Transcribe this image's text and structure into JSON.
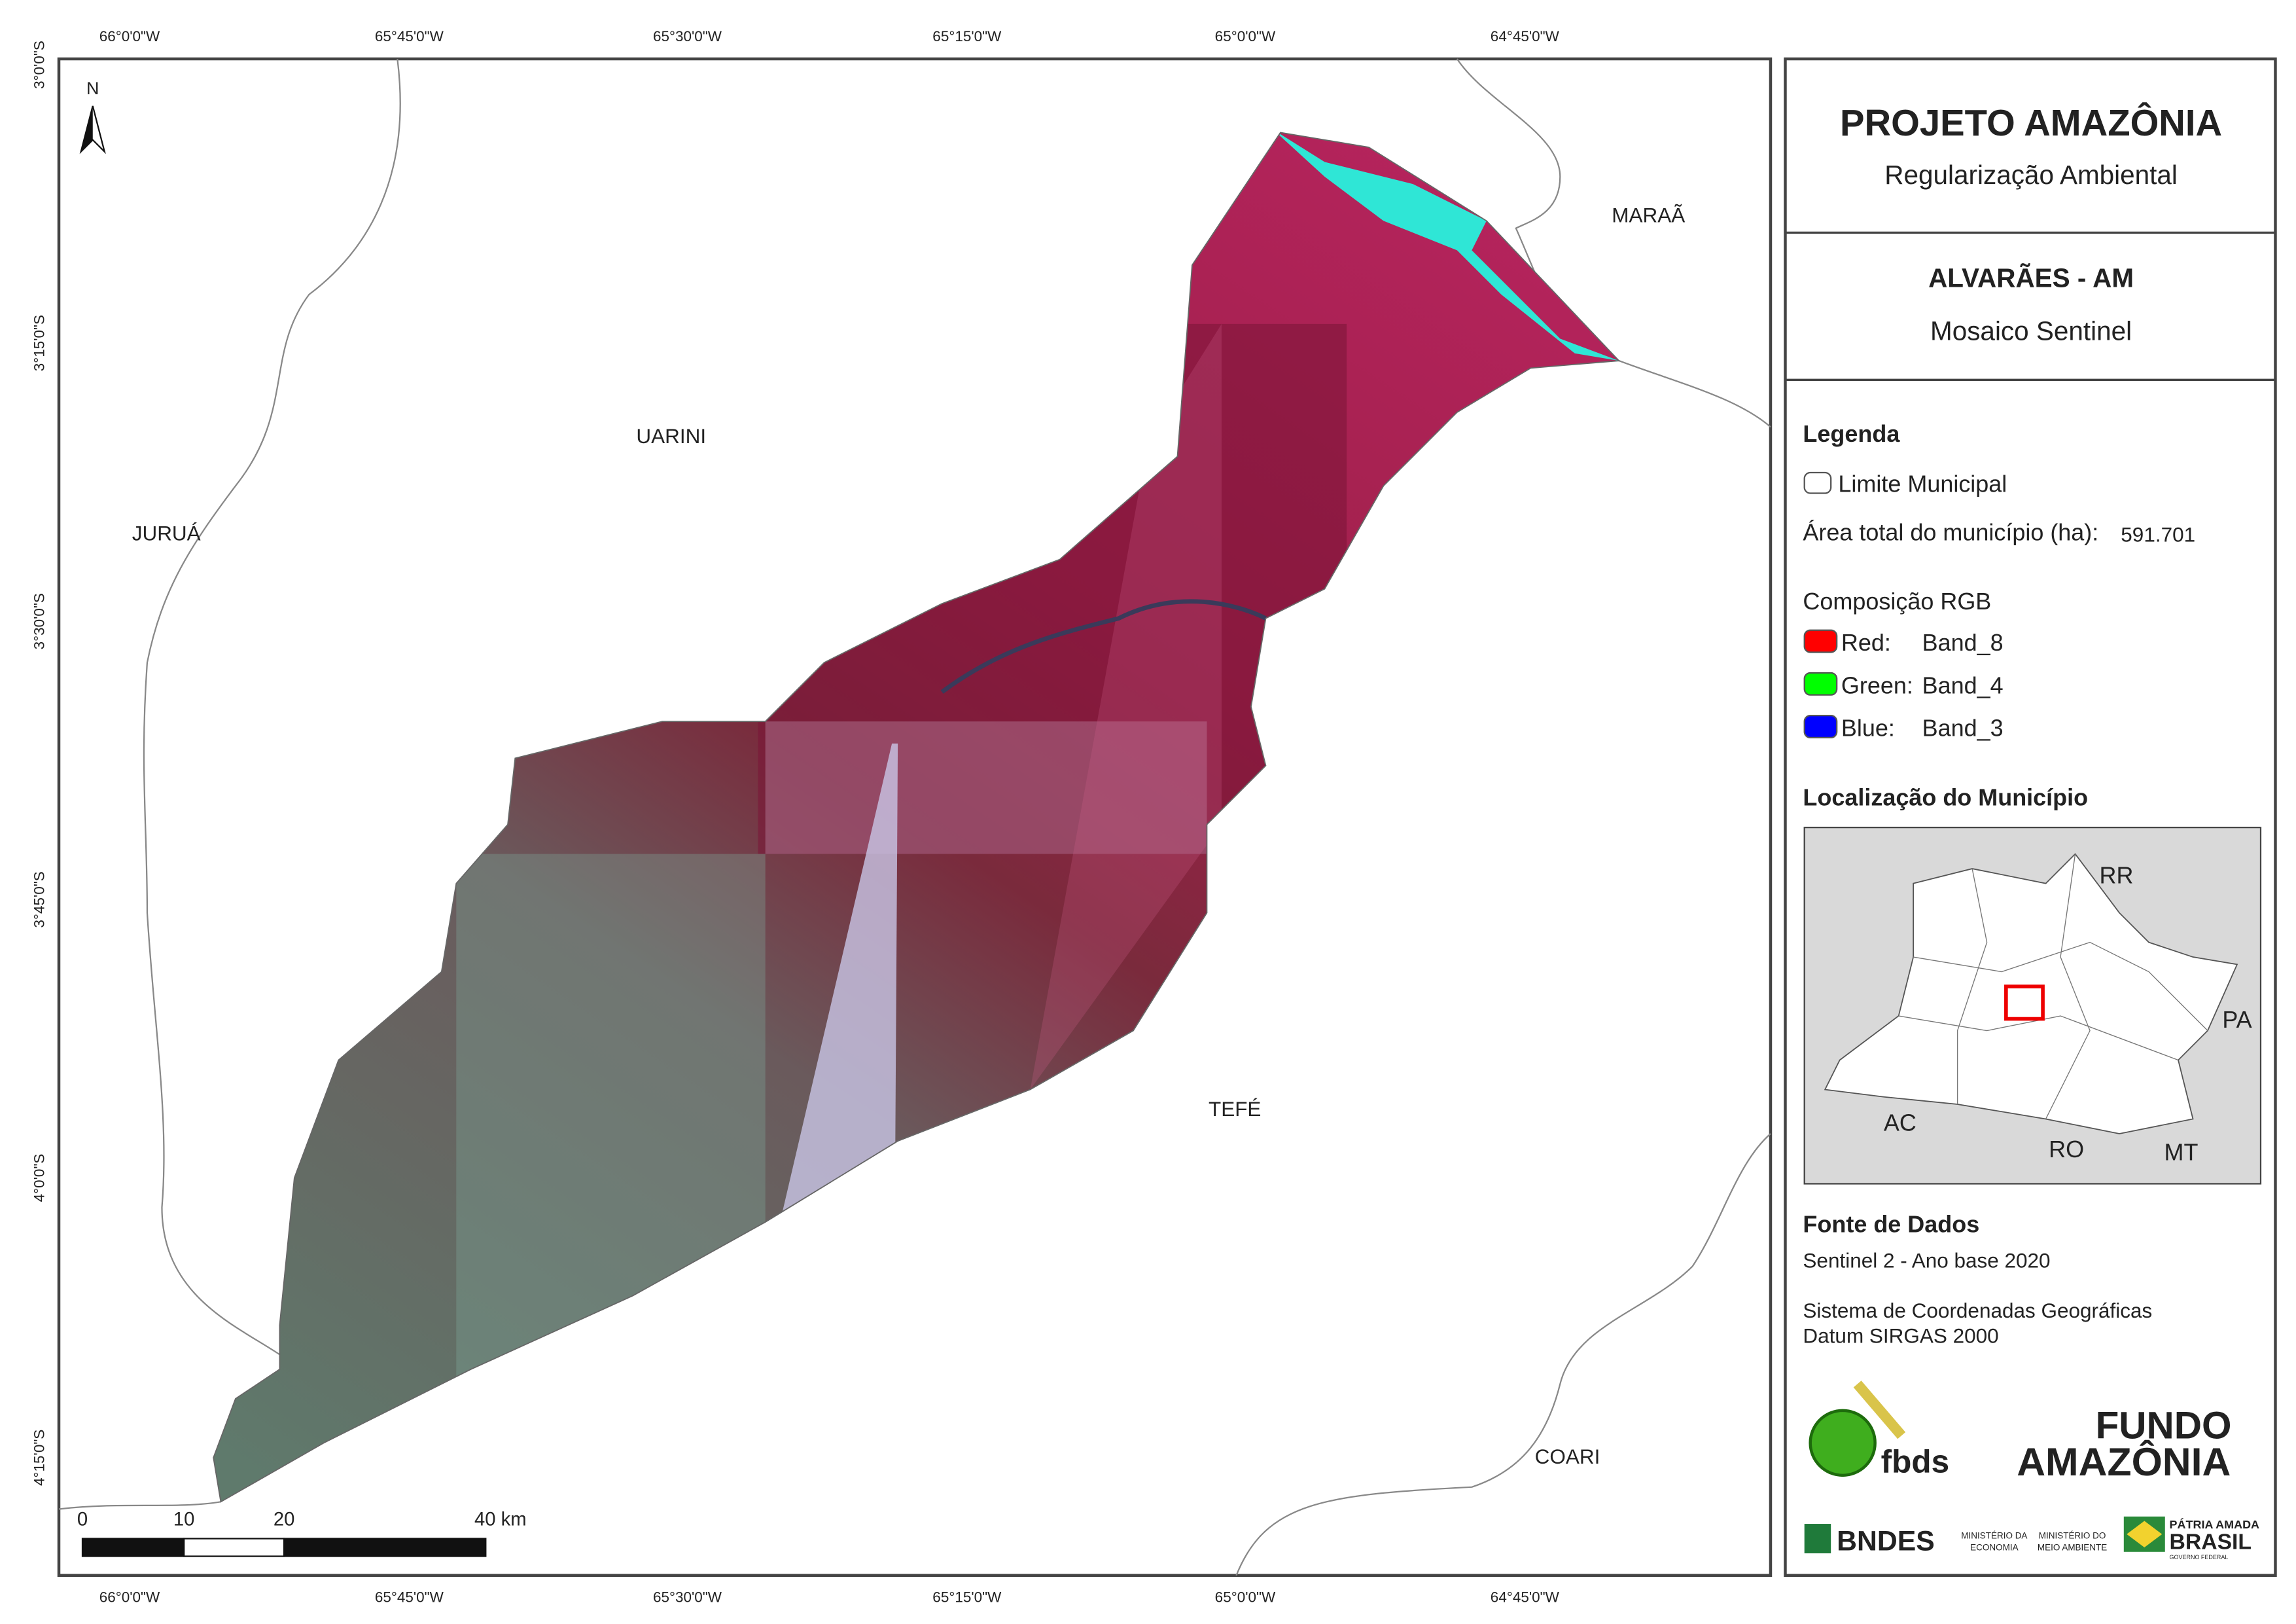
{
  "map": {
    "grid_labels": {
      "top": [
        "66°0'0\"W",
        "65°45'0\"W",
        "65°30'0\"W",
        "65°15'0\"W",
        "65°0'0\"W",
        "64°45'0\"W"
      ],
      "bottom": [
        "66°0'0\"W",
        "65°45'0\"W",
        "65°30'0\"W",
        "65°15'0\"W",
        "65°0'0\"W",
        "64°45'0\"W"
      ],
      "left": [
        "3°0'0\"S",
        "3°15'0\"S",
        "3°30'0\"S",
        "3°45'0\"S",
        "4°0'0\"S",
        "4°15'0\"S"
      ]
    },
    "places": [
      "UARINI",
      "JURUÁ",
      "MARAÃ",
      "TEFÉ",
      "COARI"
    ],
    "north": "N",
    "scale_labels": [
      "0",
      "10",
      "20",
      "40 km"
    ]
  },
  "panel": {
    "title": "PROJETO AMAZÔNIA",
    "subtitle": "Regularização Ambiental",
    "municipality": "ALVARÃES - AM",
    "product": "Mosaico Sentinel",
    "legend": {
      "title": "Legenda",
      "boundary": "Limite Municipal",
      "area_label": "Área total do município (ha):",
      "area_value": "591.701",
      "rgb_title": "Composição RGB",
      "bands": [
        {
          "channel": "Red:",
          "band": "Band_8"
        },
        {
          "channel": "Green:",
          "band": "Band_4"
        },
        {
          "channel": "Blue:",
          "band": "Band_3"
        }
      ]
    },
    "location": {
      "title": "Localização do Município",
      "states": [
        "RR",
        "PA",
        "AC",
        "RO",
        "MT"
      ]
    },
    "sources": {
      "title": "Fonte de Dados",
      "lines": [
        "Sentinel 2 - Ano base 2020",
        "Sistema de Coordenadas Geográficas",
        "Datum SIRGAS 2000"
      ]
    },
    "logos": {
      "fbds": "fbds",
      "fundo_1": "FUNDO",
      "fundo_2": "AMAZÔNIA",
      "bndes": "BNDES",
      "min_economia": [
        "MINISTÉRIO DA",
        "ECONOMIA"
      ],
      "min_ambiente": [
        "MINISTÉRIO DO",
        "MEIO AMBIENTE"
      ],
      "gov": [
        "PÁTRIA AMADA",
        "BRASIL",
        "GOVERNO FEDERAL"
      ]
    }
  }
}
